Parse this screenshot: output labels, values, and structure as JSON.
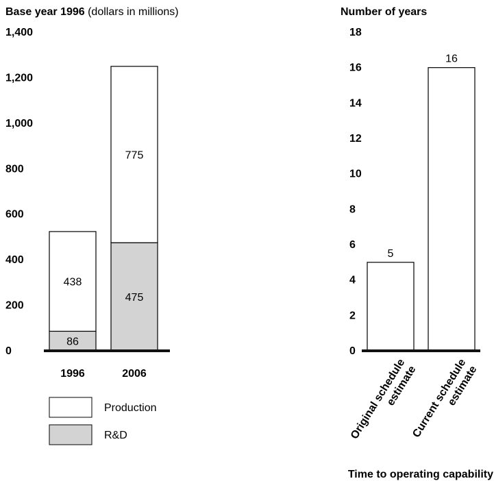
{
  "chart_data": [
    {
      "type": "bar",
      "stacked": true,
      "title": "Base year 1996",
      "title_note": "(dollars in millions)",
      "categories": [
        "1996",
        "2006"
      ],
      "series": [
        {
          "name": "R&D",
          "values": [
            86,
            475
          ],
          "color": "#d3d3d3"
        },
        {
          "name": "Production",
          "values": [
            438,
            775
          ],
          "color": "#ffffff"
        }
      ],
      "ylim": [
        0,
        1400
      ],
      "yticks": [
        0,
        200,
        400,
        600,
        800,
        1000,
        1200,
        1400
      ],
      "ytick_labels": [
        "0",
        "200",
        "400",
        "600",
        "800",
        "1,000",
        "1,200",
        "1,400"
      ],
      "legend": {
        "placement": "bottom",
        "items": [
          {
            "label": "Production",
            "color": "#ffffff"
          },
          {
            "label": "R&D",
            "color": "#d3d3d3"
          }
        ]
      },
      "grid": false
    },
    {
      "type": "bar",
      "title": "Number of years",
      "categories": [
        "Original schedule estimate",
        "Current schedule estimate"
      ],
      "category_lines": [
        [
          "Original schedule",
          "estimate"
        ],
        [
          "Current schedule",
          "estimate"
        ]
      ],
      "values": [
        5,
        16
      ],
      "xlabel": "Time to operating capability",
      "ylim": [
        0,
        18
      ],
      "yticks": [
        0,
        2,
        4,
        6,
        8,
        10,
        12,
        14,
        16,
        18
      ],
      "ytick_labels": [
        "0",
        "2",
        "4",
        "6",
        "8",
        "10",
        "12",
        "14",
        "16",
        "18"
      ],
      "grid": false
    }
  ]
}
